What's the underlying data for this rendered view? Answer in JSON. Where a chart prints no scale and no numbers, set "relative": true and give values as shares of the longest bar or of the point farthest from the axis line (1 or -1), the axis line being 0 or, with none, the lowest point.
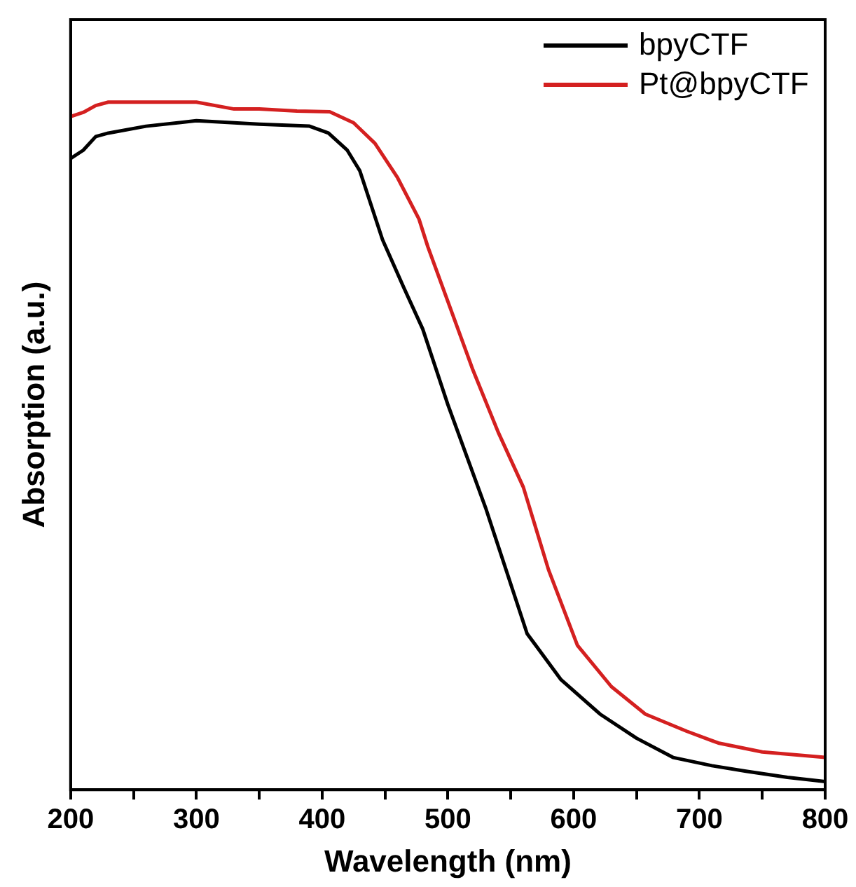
{
  "chart_data": {
    "type": "line",
    "relative": true,
    "xlabel": "Wavelength (nm)",
    "ylabel": "Absorption (a.u.)",
    "xlim": [
      200,
      800
    ],
    "xticks": [
      200,
      {
        "value": 250,
        "label": null
      },
      300,
      {
        "value": 350,
        "label": null
      },
      400,
      {
        "value": 450,
        "label": null
      },
      500,
      {
        "value": 550,
        "label": null
      },
      600,
      {
        "value": 650,
        "label": null
      },
      700,
      {
        "value": 750,
        "label": null
      },
      800
    ],
    "legend": "top right",
    "grid": false,
    "marker": "none",
    "line_style": "solid",
    "series": [
      {
        "name": "bpyCTF",
        "color": "#000000",
        "x": [
          200,
          210,
          220,
          230,
          260,
          300,
          350,
          390,
          405,
          420,
          430,
          448,
          465,
          480,
          500,
          530,
          563,
          590,
          621,
          650,
          679,
          710,
          737,
          770,
          800
        ],
        "values": [
          0.918,
          0.93,
          0.95,
          0.955,
          0.965,
          0.973,
          0.968,
          0.965,
          0.955,
          0.93,
          0.9,
          0.8,
          0.73,
          0.67,
          0.56,
          0.41,
          0.227,
          0.16,
          0.11,
          0.075,
          0.047,
          0.035,
          0.027,
          0.018,
          0.012
        ]
      },
      {
        "name": "Pt@bpyCTF",
        "color": "#d42020",
        "x": [
          200,
          210,
          220,
          230,
          260,
          300,
          330,
          350,
          380,
          406,
          425,
          442,
          460,
          477,
          484,
          500,
          520,
          540,
          560,
          580,
          603,
          630,
          657,
          690,
          715,
          750,
          800
        ],
        "values": [
          0.979,
          0.985,
          0.995,
          1.0,
          1.0,
          1.0,
          0.99,
          0.99,
          0.987,
          0.986,
          0.97,
          0.94,
          0.89,
          0.83,
          0.79,
          0.71,
          0.61,
          0.52,
          0.44,
          0.32,
          0.21,
          0.15,
          0.11,
          0.085,
          0.068,
          0.055,
          0.047
        ]
      }
    ]
  }
}
